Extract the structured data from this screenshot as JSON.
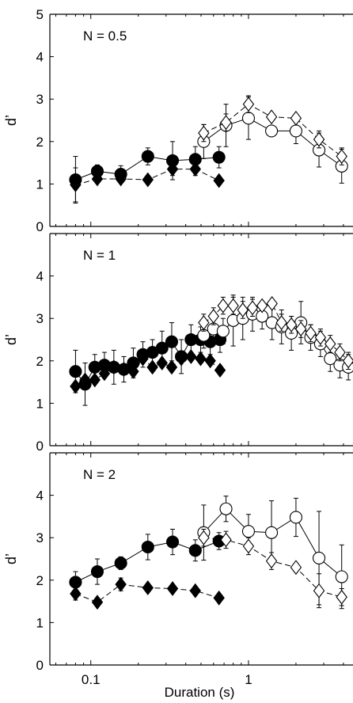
{
  "figure": {
    "xlabel": "Duration (s)"
  },
  "chart_data": [
    {
      "type": "scatter",
      "label": "N = 0.5",
      "ylabel": "d’",
      "xscale": "log",
      "xlim": [
        0.055,
        4.6
      ],
      "ylim": [
        0,
        5
      ],
      "yticks": [
        0,
        1,
        2,
        3,
        4,
        5
      ],
      "xticks": [
        0.1,
        1
      ],
      "xtick_labels": [
        "0.1",
        "1"
      ],
      "show_xtick_labels": false,
      "series": [
        {
          "marker": "filled-circle",
          "line": "solid",
          "x": [
            0.08,
            0.11,
            0.155,
            0.23,
            0.33,
            0.46,
            0.65
          ],
          "y": [
            1.1,
            1.3,
            1.23,
            1.65,
            1.55,
            1.58,
            1.63
          ],
          "err": [
            0.55,
            0.15,
            0.2,
            0.2,
            0.45,
            0.3,
            0.25
          ]
        },
        {
          "marker": "filled-diamond",
          "line": "dashed",
          "x": [
            0.08,
            0.11,
            0.155,
            0.23,
            0.33,
            0.46,
            0.65
          ],
          "y": [
            0.98,
            1.12,
            1.12,
            1.1,
            1.35,
            1.35,
            1.08
          ],
          "err": [
            0.4,
            0.0,
            0.0,
            0.0,
            0.15,
            0.15,
            0.0
          ]
        },
        {
          "marker": "open-circle",
          "line": "solid",
          "x": [
            0.52,
            0.72,
            1.0,
            1.4,
            2.0,
            2.8,
            3.9
          ],
          "y": [
            2.0,
            2.38,
            2.55,
            2.25,
            2.25,
            1.8,
            1.42
          ],
          "err": [
            0.4,
            0.5,
            0.5,
            0.0,
            0.3,
            0.4,
            0.4
          ]
        },
        {
          "marker": "open-diamond",
          "line": "dashed",
          "x": [
            0.52,
            0.72,
            1.0,
            1.4,
            2.0,
            2.8,
            3.9
          ],
          "y": [
            2.2,
            2.45,
            2.88,
            2.58,
            2.55,
            2.05,
            1.65
          ],
          "err": [
            0.2,
            0.2,
            0.2,
            0.0,
            0.0,
            0.2,
            0.2
          ]
        }
      ]
    },
    {
      "type": "scatter",
      "label": "N = 1",
      "ylabel": "d’",
      "xscale": "log",
      "xlim": [
        0.055,
        4.6
      ],
      "ylim": [
        0,
        5
      ],
      "yticks": [
        0,
        1,
        2,
        3,
        4
      ],
      "xticks": [
        0.1,
        1
      ],
      "xtick_labels": [
        "0.1",
        "1"
      ],
      "show_xtick_labels": false,
      "series": [
        {
          "marker": "filled-circle",
          "line": "solid",
          "x": [
            0.08,
            0.092,
            0.106,
            0.122,
            0.14,
            0.162,
            0.186,
            0.214,
            0.246,
            0.283,
            0.326,
            0.375,
            0.432,
            0.497,
            0.572,
            0.66
          ],
          "y": [
            1.75,
            1.45,
            1.85,
            1.9,
            1.85,
            1.8,
            1.95,
            2.15,
            2.2,
            2.3,
            2.45,
            2.1,
            2.5,
            2.5,
            2.45,
            2.5
          ],
          "err": [
            0.5,
            0.5,
            0.3,
            0.3,
            0.4,
            0.3,
            0.35,
            0.3,
            0.3,
            0.4,
            0.45,
            0.4,
            0.35,
            0.3,
            0.3,
            0.3
          ]
        },
        {
          "marker": "filled-diamond",
          "line": "dashed",
          "x": [
            0.08,
            0.092,
            0.106,
            0.122,
            0.14,
            0.162,
            0.186,
            0.214,
            0.246,
            0.283,
            0.326,
            0.375,
            0.432,
            0.497,
            0.572,
            0.66
          ],
          "y": [
            1.4,
            1.55,
            1.55,
            1.7,
            1.85,
            1.8,
            1.75,
            2.05,
            1.85,
            1.95,
            1.85,
            2.05,
            2.1,
            2.05,
            2.0,
            1.78
          ],
          "err": [
            0.0,
            0.0,
            0.0,
            0.0,
            0.0,
            0.0,
            0.0,
            0.0,
            0.0,
            0.0,
            0.0,
            0.0,
            0.0,
            0.0,
            0.0,
            0.0
          ]
        },
        {
          "marker": "open-circle",
          "line": "solid",
          "x": [
            0.52,
            0.6,
            0.69,
            0.8,
            0.92,
            1.06,
            1.22,
            1.41,
            1.62,
            1.87,
            2.15,
            2.48,
            2.86,
            3.3,
            3.8,
            4.3
          ],
          "y": [
            2.6,
            2.75,
            2.7,
            2.95,
            3.0,
            3.1,
            3.05,
            2.9,
            2.8,
            2.65,
            2.9,
            2.55,
            2.4,
            2.05,
            1.9,
            1.85
          ],
          "err": [
            0.3,
            0.3,
            0.3,
            0.6,
            0.5,
            0.4,
            0.3,
            0.4,
            0.4,
            0.4,
            0.5,
            0.3,
            0.3,
            0.3,
            0.3,
            0.3
          ]
        },
        {
          "marker": "open-diamond",
          "line": "dashed",
          "x": [
            0.52,
            0.6,
            0.69,
            0.8,
            0.92,
            1.06,
            1.22,
            1.41,
            1.62,
            1.87,
            2.15,
            2.48,
            2.86,
            3.3,
            3.8,
            4.3
          ],
          "y": [
            2.9,
            3.05,
            3.3,
            3.3,
            3.2,
            3.25,
            3.3,
            3.35,
            2.9,
            2.85,
            2.75,
            2.65,
            2.55,
            2.4,
            2.2,
            2.0
          ],
          "err": [
            0.2,
            0.2,
            0.2,
            0.2,
            0.2,
            0.2,
            0.0,
            0.0,
            0.2,
            0.2,
            0.2,
            0.2,
            0.2,
            0.2,
            0.2,
            0.2
          ]
        }
      ]
    },
    {
      "type": "scatter",
      "label": "N = 2",
      "ylabel": "d’",
      "xscale": "log",
      "xlim": [
        0.055,
        4.6
      ],
      "ylim": [
        0,
        5
      ],
      "yticks": [
        0,
        1,
        2,
        3,
        4
      ],
      "xticks": [
        0.1,
        1
      ],
      "xtick_labels": [
        "0.1",
        "1"
      ],
      "show_xtick_labels": true,
      "series": [
        {
          "marker": "filled-circle",
          "line": "solid",
          "x": [
            0.08,
            0.11,
            0.155,
            0.23,
            0.33,
            0.46,
            0.65
          ],
          "y": [
            1.95,
            2.2,
            2.4,
            2.78,
            2.9,
            2.7,
            2.92
          ],
          "err": [
            0.25,
            0.3,
            0.15,
            0.3,
            0.3,
            0.25,
            0.2
          ]
        },
        {
          "marker": "filled-diamond",
          "line": "dashed",
          "x": [
            0.08,
            0.11,
            0.155,
            0.23,
            0.33,
            0.46,
            0.65
          ],
          "y": [
            1.68,
            1.48,
            1.9,
            1.82,
            1.8,
            1.75,
            1.58
          ],
          "err": [
            0.15,
            0.0,
            0.15,
            0.0,
            0.0,
            0.0,
            0.0
          ]
        },
        {
          "marker": "open-circle",
          "line": "solid",
          "x": [
            0.52,
            0.72,
            1.0,
            1.4,
            2.0,
            2.8,
            3.9
          ],
          "y": [
            3.12,
            3.68,
            3.15,
            3.12,
            3.48,
            2.52,
            2.08
          ],
          "err": [
            0.65,
            0.3,
            0.4,
            0.75,
            0.45,
            1.1,
            0.75
          ]
        },
        {
          "marker": "open-diamond",
          "line": "dashed",
          "x": [
            0.52,
            0.72,
            1.0,
            1.4,
            2.0,
            2.8,
            3.9
          ],
          "y": [
            3.0,
            2.95,
            2.8,
            2.45,
            2.3,
            1.75,
            1.6
          ],
          "err": [
            0.2,
            0.2,
            0.2,
            0.2,
            0.0,
            0.4,
            0.2
          ]
        }
      ]
    }
  ]
}
